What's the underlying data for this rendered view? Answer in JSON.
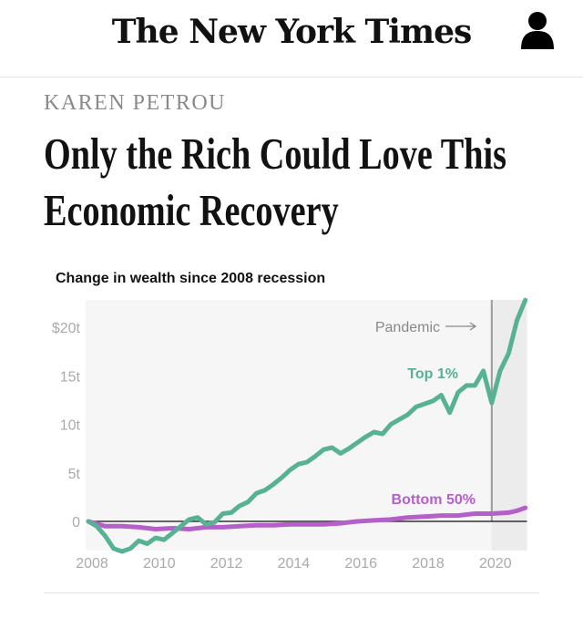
{
  "header": {
    "logo": "The New York Times",
    "user_icon": "person-icon"
  },
  "article": {
    "author": "KAREN PETROU",
    "headline_line1": "Only the Rich Could Love This",
    "headline_line2": "Economic Recovery"
  },
  "chart_data": {
    "type": "line",
    "title": "Change in wealth since 2008 recession",
    "xlabel": "",
    "ylabel": "",
    "xlim": [
      2008,
      2021
    ],
    "ylim": [
      -3.5,
      23
    ],
    "x_ticks": [
      "2008",
      "2010",
      "2012",
      "2014",
      "2016",
      "2018",
      "2020"
    ],
    "y_ticks": [
      "0",
      "5t",
      "10t",
      "15t",
      "$20t"
    ],
    "y_tick_values": [
      0,
      5,
      10,
      15,
      20
    ],
    "x_tick_values": [
      2008,
      2010,
      2012,
      2014,
      2016,
      2018,
      2020
    ],
    "annotation": {
      "text": "Pandemic",
      "x": 2020
    },
    "grid": false,
    "series": [
      {
        "name": "Top 1%",
        "color": "#57b294",
        "x": [
          2008,
          2008.25,
          2008.5,
          2008.75,
          2009,
          2009.25,
          2009.5,
          2009.75,
          2010,
          2010.25,
          2010.5,
          2010.75,
          2011,
          2011.25,
          2011.5,
          2011.75,
          2012,
          2012.25,
          2012.5,
          2012.75,
          2013,
          2013.25,
          2013.5,
          2013.75,
          2014,
          2014.25,
          2014.5,
          2014.75,
          2015,
          2015.25,
          2015.5,
          2015.75,
          2016,
          2016.25,
          2016.5,
          2016.75,
          2017,
          2017.25,
          2017.5,
          2017.75,
          2018,
          2018.25,
          2018.5,
          2018.75,
          2019,
          2019.25,
          2019.5,
          2019.75,
          2020,
          2020.25,
          2020.5,
          2020.75,
          2021
        ],
        "values": [
          0,
          -0.5,
          -1.5,
          -2.8,
          -3.1,
          -2.8,
          -2.0,
          -2.3,
          -1.7,
          -1.9,
          -1.2,
          -0.5,
          0.2,
          0.4,
          -0.3,
          -0.1,
          0.8,
          0.9,
          1.6,
          2.0,
          2.9,
          3.2,
          3.8,
          4.5,
          5.3,
          5.9,
          6.1,
          6.7,
          7.4,
          7.6,
          7.0,
          7.5,
          8.1,
          8.7,
          9.2,
          9.0,
          10.0,
          10.5,
          11.0,
          11.8,
          12.1,
          12.4,
          13.0,
          11.2,
          13.3,
          14.0,
          14.0,
          15.5,
          12.2,
          15.5,
          17.3,
          20.7,
          22.8
        ]
      },
      {
        "name": "Bottom 50%",
        "color": "#b55fc9",
        "x": [
          2008,
          2008.5,
          2009,
          2009.5,
          2010,
          2010.5,
          2011,
          2011.5,
          2012,
          2012.5,
          2013,
          2013.5,
          2014,
          2014.5,
          2015,
          2015.5,
          2016,
          2016.5,
          2017,
          2017.5,
          2018,
          2018.5,
          2019,
          2019.5,
          2020,
          2020.5,
          2020.75,
          2021
        ],
        "values": [
          0,
          -0.5,
          -0.5,
          -0.6,
          -0.8,
          -0.7,
          -0.8,
          -0.6,
          -0.6,
          -0.5,
          -0.4,
          -0.4,
          -0.3,
          -0.3,
          -0.3,
          -0.2,
          0,
          0.1,
          0.2,
          0.4,
          0.5,
          0.6,
          0.6,
          0.8,
          0.8,
          0.9,
          1.1,
          1.4
        ]
      }
    ]
  }
}
